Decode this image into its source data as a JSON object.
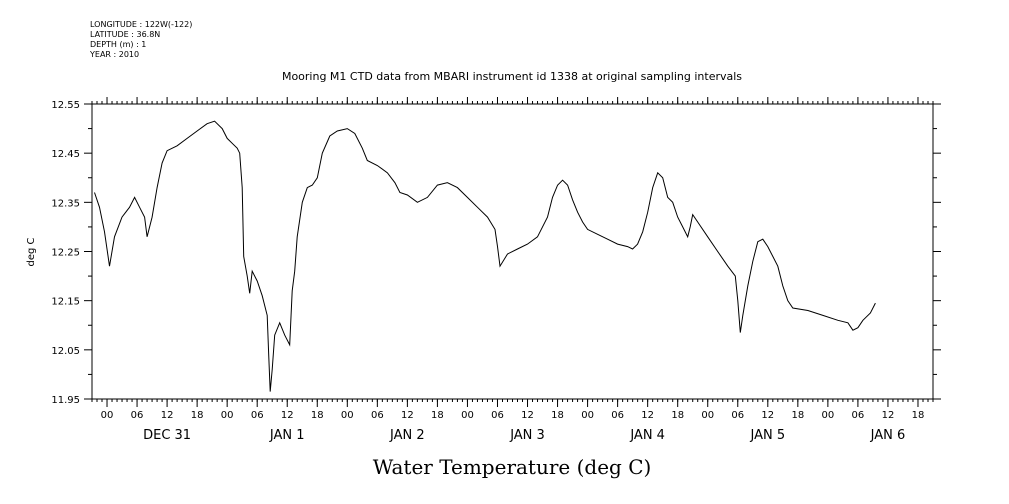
{
  "meta": {
    "longitude": "LONGITUDE : 122W(-122)",
    "latitude": "LATITUDE : 36.8N",
    "depth": "DEPTH (m) : 1",
    "year": "YEAR : 2010"
  },
  "chart_data": {
    "type": "line",
    "title": "Mooring M1 CTD data from MBARI instrument id 1338 at original sampling intervals",
    "xlabel": "Water Temperature (deg C)",
    "ylabel": "deg C",
    "xlim_hours": [
      -3,
      165
    ],
    "ylim": [
      11.95,
      12.55
    ],
    "yticks": [
      11.95,
      12.05,
      12.15,
      12.25,
      12.35,
      12.45,
      12.55
    ],
    "xticks_hours": [
      0,
      6,
      12,
      18,
      24,
      30,
      36,
      42,
      48,
      54,
      60,
      66,
      72,
      78,
      84,
      90,
      96,
      102,
      108,
      114,
      120,
      126,
      132,
      138,
      144,
      150,
      156,
      162
    ],
    "xtick_labels": [
      "00",
      "06",
      "12",
      "18",
      "00",
      "06",
      "12",
      "18",
      "00",
      "06",
      "12",
      "18",
      "00",
      "06",
      "12",
      "18",
      "00",
      "06",
      "12",
      "18",
      "00",
      "06",
      "12",
      "18",
      "00",
      "06",
      "12",
      "18"
    ],
    "day_labels": [
      {
        "hour": 12,
        "label": "DEC 31"
      },
      {
        "hour": 36,
        "label": "JAN  1"
      },
      {
        "hour": 60,
        "label": "JAN  2"
      },
      {
        "hour": 84,
        "label": "JAN  3"
      },
      {
        "hour": 108,
        "label": "JAN  4"
      },
      {
        "hour": 132,
        "label": "JAN  5"
      },
      {
        "hour": 156,
        "label": "JAN  6"
      }
    ],
    "series": [
      {
        "points": [
          [
            -2.5,
            12.37
          ],
          [
            -1.5,
            12.34
          ],
          [
            -0.5,
            12.29
          ],
          [
            0.5,
            12.22
          ],
          [
            1.5,
            12.28
          ],
          [
            3,
            12.32
          ],
          [
            4.5,
            12.34
          ],
          [
            5.5,
            12.36
          ],
          [
            6.5,
            12.34
          ],
          [
            7.5,
            12.32
          ],
          [
            8,
            12.28
          ],
          [
            9,
            12.32
          ],
          [
            10,
            12.38
          ],
          [
            11,
            12.43
          ],
          [
            12,
            12.455
          ],
          [
            14,
            12.465
          ],
          [
            16,
            12.48
          ],
          [
            18,
            12.495
          ],
          [
            20,
            12.51
          ],
          [
            21.5,
            12.515
          ],
          [
            23,
            12.5
          ],
          [
            24,
            12.48
          ],
          [
            25,
            12.47
          ],
          [
            26,
            12.46
          ],
          [
            26.5,
            12.45
          ],
          [
            27,
            12.38
          ],
          [
            27.3,
            12.24
          ],
          [
            28,
            12.2
          ],
          [
            28.5,
            12.165
          ],
          [
            29,
            12.21
          ],
          [
            30,
            12.19
          ],
          [
            31,
            12.16
          ],
          [
            32,
            12.12
          ],
          [
            32.3,
            12.04
          ],
          [
            32.6,
            11.965
          ],
          [
            33,
            12.01
          ],
          [
            33.5,
            12.08
          ],
          [
            34.5,
            12.105
          ],
          [
            35.5,
            12.08
          ],
          [
            36.5,
            12.06
          ],
          [
            37,
            12.17
          ],
          [
            37.5,
            12.21
          ],
          [
            38,
            12.28
          ],
          [
            39,
            12.35
          ],
          [
            40,
            12.38
          ],
          [
            41,
            12.385
          ],
          [
            42,
            12.4
          ],
          [
            43,
            12.45
          ],
          [
            44.5,
            12.485
          ],
          [
            46,
            12.495
          ],
          [
            48,
            12.5
          ],
          [
            49.5,
            12.49
          ],
          [
            51,
            12.46
          ],
          [
            52,
            12.435
          ],
          [
            54,
            12.425
          ],
          [
            56,
            12.41
          ],
          [
            57.5,
            12.39
          ],
          [
            58.5,
            12.37
          ],
          [
            60,
            12.365
          ],
          [
            62,
            12.35
          ],
          [
            64,
            12.36
          ],
          [
            66,
            12.385
          ],
          [
            68,
            12.39
          ],
          [
            70,
            12.38
          ],
          [
            72,
            12.36
          ],
          [
            74,
            12.34
          ],
          [
            76,
            12.32
          ],
          [
            77.5,
            12.295
          ],
          [
            78,
            12.26
          ],
          [
            78.5,
            12.22
          ],
          [
            80,
            12.245
          ],
          [
            82,
            12.255
          ],
          [
            84,
            12.265
          ],
          [
            86,
            12.28
          ],
          [
            88,
            12.32
          ],
          [
            89,
            12.36
          ],
          [
            90,
            12.385
          ],
          [
            91,
            12.395
          ],
          [
            92,
            12.385
          ],
          [
            93,
            12.355
          ],
          [
            94,
            12.33
          ],
          [
            95,
            12.31
          ],
          [
            96,
            12.295
          ],
          [
            98,
            12.285
          ],
          [
            100,
            12.275
          ],
          [
            102,
            12.265
          ],
          [
            104,
            12.26
          ],
          [
            105,
            12.255
          ],
          [
            106,
            12.265
          ],
          [
            107,
            12.29
          ],
          [
            108,
            12.33
          ],
          [
            109,
            12.38
          ],
          [
            110,
            12.41
          ],
          [
            111,
            12.4
          ],
          [
            112,
            12.36
          ],
          [
            113,
            12.35
          ],
          [
            114,
            12.32
          ],
          [
            115,
            12.3
          ],
          [
            116,
            12.28
          ],
          [
            116.5,
            12.3
          ],
          [
            117,
            12.325
          ],
          [
            118,
            12.31
          ],
          [
            120,
            12.28
          ],
          [
            122,
            12.25
          ],
          [
            124,
            12.22
          ],
          [
            125.5,
            12.2
          ],
          [
            126,
            12.15
          ],
          [
            126.5,
            12.085
          ],
          [
            127,
            12.12
          ],
          [
            128,
            12.18
          ],
          [
            129,
            12.23
          ],
          [
            130,
            12.27
          ],
          [
            131,
            12.275
          ],
          [
            132,
            12.26
          ],
          [
            133,
            12.24
          ],
          [
            134,
            12.22
          ],
          [
            135,
            12.18
          ],
          [
            136,
            12.15
          ],
          [
            137,
            12.135
          ],
          [
            140,
            12.13
          ],
          [
            143,
            12.12
          ],
          [
            146,
            12.11
          ],
          [
            148,
            12.105
          ],
          [
            149,
            12.09
          ],
          [
            150,
            12.095
          ],
          [
            151,
            12.11
          ],
          [
            152.5,
            12.125
          ],
          [
            153.5,
            12.145
          ]
        ]
      }
    ]
  }
}
